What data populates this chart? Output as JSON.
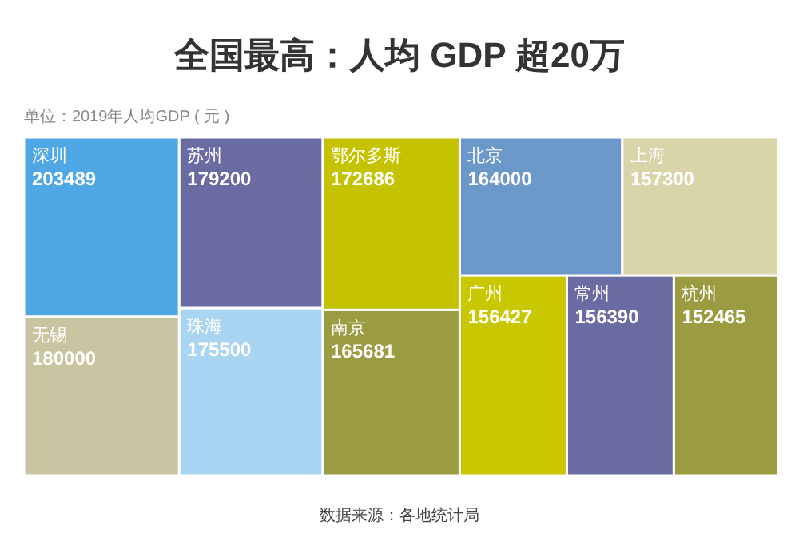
{
  "chart_data": {
    "type": "other",
    "title": "全国最高：人均 GDP 超20万",
    "subtitle": "单位：2019年人均GDP ( 元 )",
    "categories": [
      "深圳",
      "无锡",
      "苏州",
      "珠海",
      "鄂尔多斯",
      "南京",
      "北京",
      "上海",
      "广州",
      "常州",
      "杭州"
    ],
    "values": [
      203489,
      180000,
      179200,
      175500,
      172686,
      165681,
      164000,
      157300,
      156427,
      156390,
      152465
    ],
    "colors": [
      "#4fa7e6",
      "#c9c5a1",
      "#6b6ba3",
      "#a9d5f3",
      "#c5c200",
      "#9b9b42",
      "#6c97c9",
      "#d9d5aa",
      "#c9c800",
      "#6b6ba3",
      "#9b9b42"
    ],
    "data_labels": true,
    "annotations": [
      "数据来源：各地统计局"
    ]
  }
}
